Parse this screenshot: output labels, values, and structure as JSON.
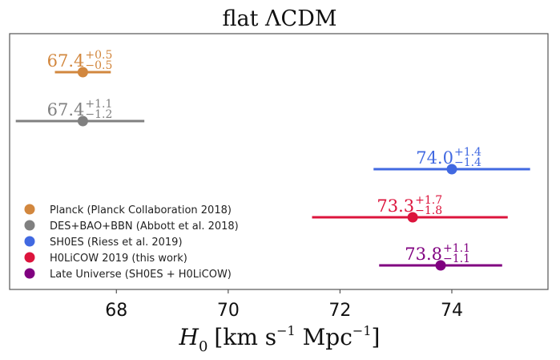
{
  "chart_data": {
    "type": "scatter",
    "subtype": "forest-plot-errorbars",
    "title": "flat ΛCDM",
    "xlabel": "H_0 [km s^-1 Mpc^-1]",
    "xlabel_parts": {
      "main": "H",
      "sub": "0",
      "units_open": "[km s",
      "exp1": "−1",
      "units_mid": " Mpc",
      "exp2": "−1",
      "units_close": "]"
    },
    "ylabel": "",
    "xlim": [
      66.09,
      75.72
    ],
    "xticks": [
      68,
      70,
      72,
      74
    ],
    "xtick_labels": [
      "68",
      "70",
      "72",
      "74"
    ],
    "grid": false,
    "legend_position": "bottom-left",
    "series": [
      {
        "name": "Planck (Planck Collaboration 2018)",
        "value": 67.4,
        "plus": 0.5,
        "minus": 0.5,
        "label_value": "67.4",
        "label_plus": "+0.5",
        "label_minus": "−0.5",
        "color": "#d2873e"
      },
      {
        "name": "DES+BAO+BBN (Abbott et al. 2018)",
        "value": 67.4,
        "plus": 1.1,
        "minus": 1.2,
        "label_value": "67.4",
        "label_plus": "+1.1",
        "label_minus": "−1.2",
        "color": "#808080"
      },
      {
        "name": "SH0ES (Riess et al. 2019)",
        "value": 74.0,
        "plus": 1.4,
        "minus": 1.4,
        "label_value": "74.0",
        "label_plus": "+1.4",
        "label_minus": "−1.4",
        "color": "#4169e1"
      },
      {
        "name": "H0LiCOW 2019 (this work)",
        "value": 73.3,
        "plus": 1.7,
        "minus": 1.8,
        "label_value": "73.3",
        "label_plus": "+1.7",
        "label_minus": "−1.8",
        "color": "#dc143c"
      },
      {
        "name": "Late Universe (SH0ES + H0LiCOW)",
        "value": 73.8,
        "plus": 1.1,
        "minus": 1.1,
        "label_value": "73.8",
        "label_plus": "+1.1",
        "label_minus": "−1.1",
        "color": "#800080"
      }
    ]
  }
}
